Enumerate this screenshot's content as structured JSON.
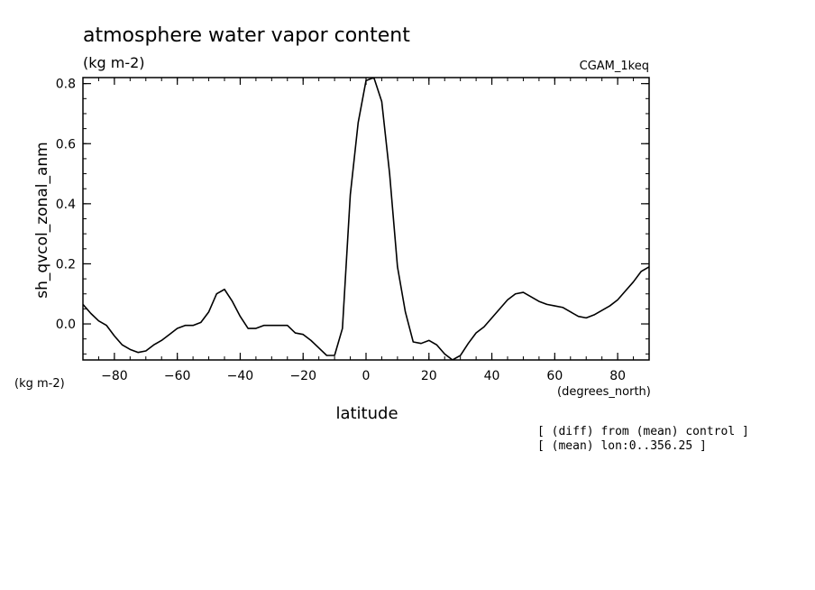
{
  "chart_data": {
    "type": "line",
    "title": "atmosphere water vapor content",
    "units": "(kg m-2)",
    "run_label": "CGAM_1keq",
    "ylabel": "sh_qvcol_zonal_anm",
    "y_units": "(kg m-2)",
    "xlabel": "latitude",
    "x_units": "(degrees_north)",
    "notes": [
      "[ (diff) from (mean) control ]",
      "[ (mean) lon:0..356.25 ]"
    ],
    "xlim": [
      -90,
      90
    ],
    "ylim": [
      -0.12,
      0.82
    ],
    "xticks": [
      -80,
      -60,
      -40,
      -20,
      0,
      20,
      40,
      60,
      80
    ],
    "yticks": [
      0.0,
      0.2,
      0.4,
      0.6,
      0.8
    ],
    "ytick_labels": [
      "0.0",
      "0.2",
      "0.4",
      "0.6",
      "0.8"
    ],
    "grid": false,
    "series": [
      {
        "x": [
          -90,
          -87.5,
          -85,
          -82.5,
          -80,
          -77.5,
          -75,
          -72.5,
          -70,
          -67.5,
          -65,
          -62.5,
          -60,
          -57.5,
          -55,
          -52.5,
          -50,
          -47.5,
          -45,
          -42.5,
          -40,
          -37.5,
          -35,
          -32.5,
          -30,
          -27.5,
          -25,
          -22.5,
          -20,
          -17.5,
          -15,
          -12.5,
          -10,
          -7.5,
          -5,
          -2.5,
          0,
          2.5,
          5,
          7.5,
          10,
          12.5,
          15,
          17.5,
          20,
          22.5,
          25,
          27.5,
          30,
          32.5,
          35,
          37.5,
          40,
          42.5,
          45,
          47.5,
          50,
          52.5,
          55,
          57.5,
          60,
          62.5,
          65,
          67.5,
          70,
          72.5,
          75,
          77.5,
          80,
          82.5,
          85,
          87.5,
          90
        ],
        "y": [
          0.065,
          0.035,
          0.01,
          -0.005,
          -0.04,
          -0.07,
          -0.085,
          -0.095,
          -0.09,
          -0.07,
          -0.055,
          -0.035,
          -0.015,
          -0.005,
          -0.005,
          0.005,
          0.04,
          0.1,
          0.115,
          0.075,
          0.025,
          -0.015,
          -0.015,
          -0.005,
          -0.005,
          -0.005,
          -0.005,
          -0.03,
          -0.035,
          -0.055,
          -0.08,
          -0.105,
          -0.105,
          -0.015,
          0.43,
          0.67,
          0.81,
          0.82,
          0.74,
          0.5,
          0.19,
          0.04,
          -0.06,
          -0.065,
          -0.055,
          -0.07,
          -0.1,
          -0.12,
          -0.105,
          -0.065,
          -0.03,
          -0.01,
          0.02,
          0.05,
          0.08,
          0.1,
          0.105,
          0.09,
          0.075,
          0.065,
          0.06,
          0.055,
          0.04,
          0.025,
          0.02,
          0.03,
          0.045,
          0.06,
          0.08,
          0.11,
          0.14,
          0.175,
          0.19
        ]
      }
    ]
  }
}
